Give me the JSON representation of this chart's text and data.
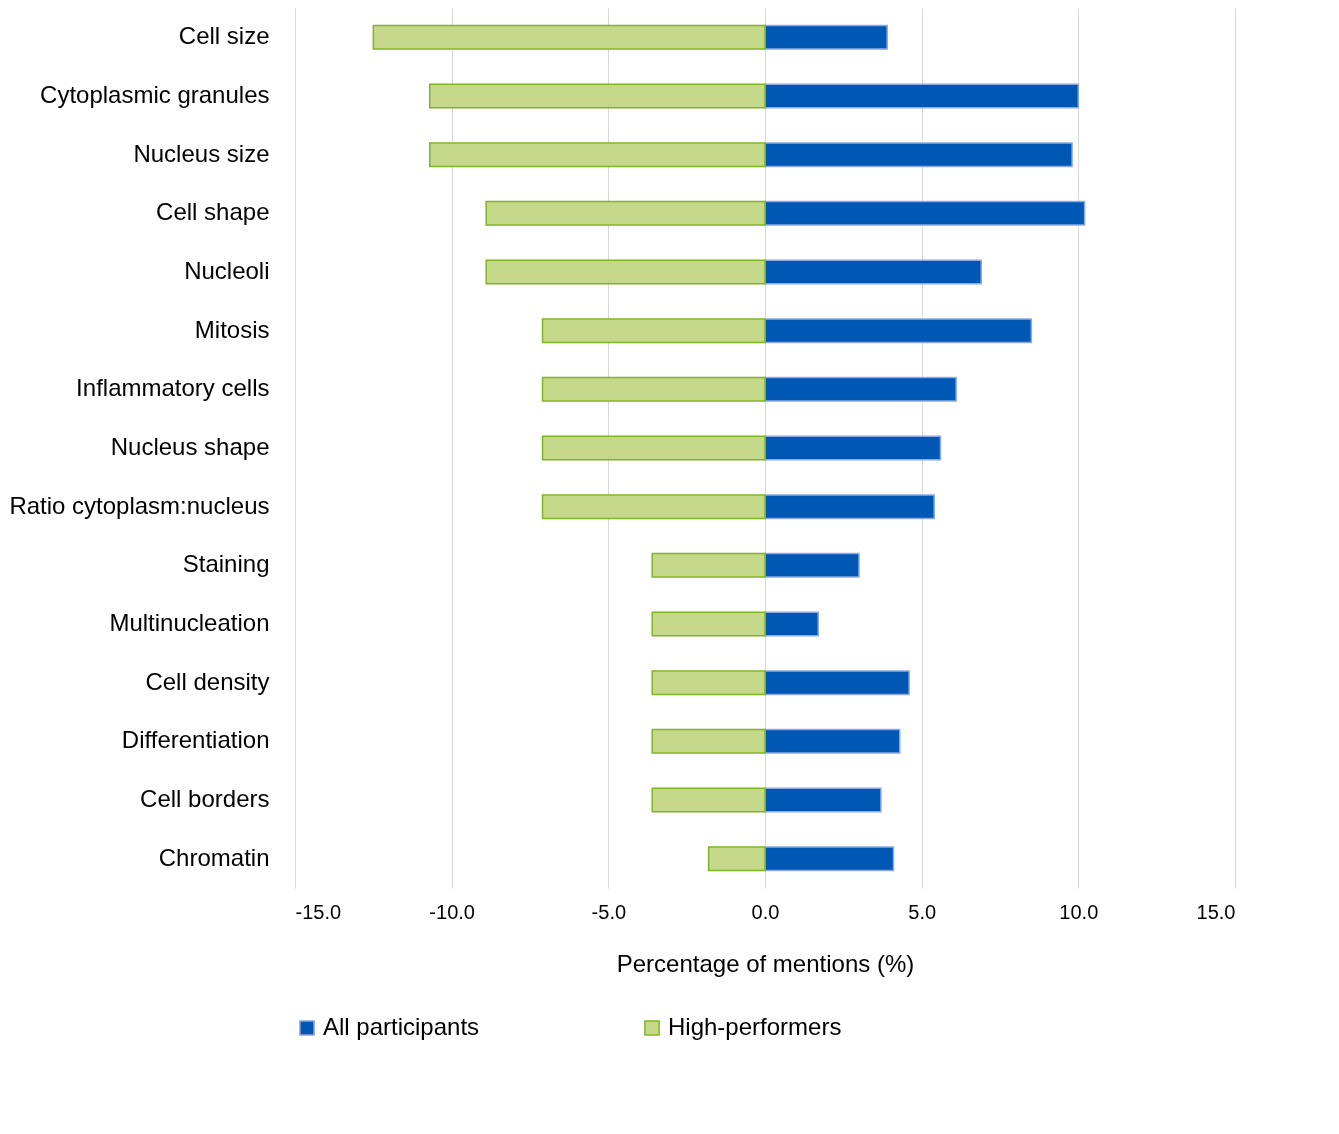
{
  "chart_data": {
    "type": "bar",
    "orientation": "horizontal",
    "stacked": true,
    "xlabel": "Percentage of mentions (%)",
    "categories": [
      "Cell size",
      "Cytoplasmic granules",
      "Nucleus size",
      "Cell shape",
      "Nucleoli",
      "Mitosis",
      "Inflammatory cells",
      "Nucleus shape",
      "Ratio cytoplasm:nucleus",
      "Staining",
      "Multinucleation",
      "Cell density",
      "Differentiation",
      "Cell borders",
      "Chromatin"
    ],
    "series": [
      {
        "name": "All participants",
        "color": "#0057b4",
        "values": [
          3.9,
          10.0,
          9.8,
          10.2,
          6.9,
          8.5,
          6.1,
          5.6,
          5.4,
          3.0,
          1.7,
          4.6,
          4.3,
          3.7,
          4.1
        ]
      },
      {
        "name": "High-performers",
        "color": "#c6d98a",
        "values": [
          -12.5,
          -10.7,
          -10.7,
          -8.9,
          -8.9,
          -7.1,
          -7.1,
          -7.1,
          -7.1,
          -3.6,
          -3.6,
          -3.6,
          -3.6,
          -3.6,
          -1.8
        ]
      }
    ],
    "xlim": [
      -15,
      15
    ],
    "xticks": [
      {
        "value": -15,
        "label": "-15.0"
      },
      {
        "value": -10,
        "label": "-10.0"
      },
      {
        "value": -5,
        "label": "-5.0"
      },
      {
        "value": 0,
        "label": "0.0"
      },
      {
        "value": 5,
        "label": "5.0"
      },
      {
        "value": 10,
        "label": "10.0"
      },
      {
        "value": 15,
        "label": "15.0"
      }
    ],
    "grid": "x",
    "legend": "bottom"
  }
}
